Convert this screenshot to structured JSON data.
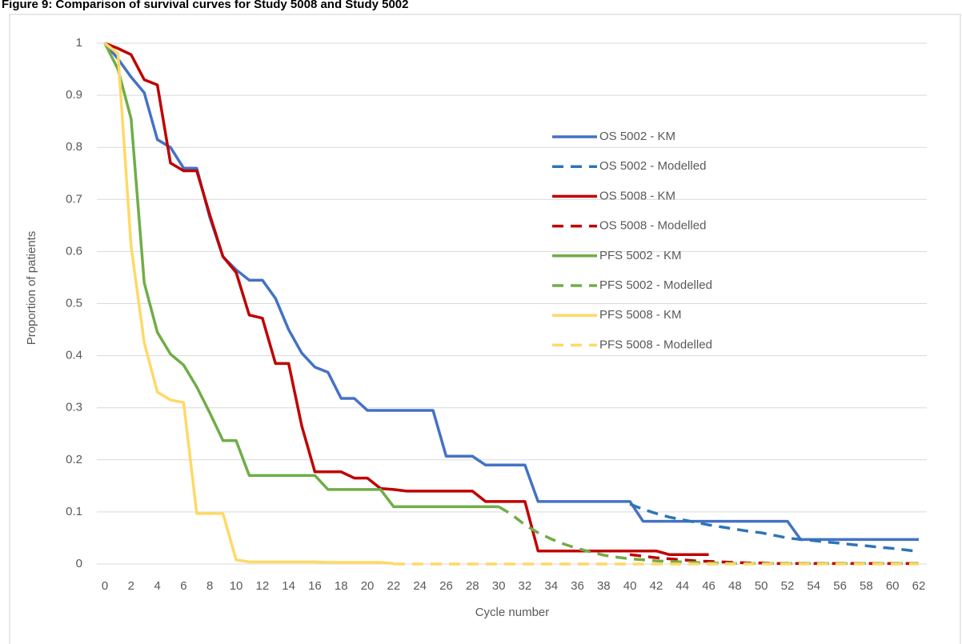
{
  "chart_data": {
    "type": "line",
    "title": "Figure 9: Comparison of survival curves for Study 5008 and Study 5002",
    "x_label": "Cycle number",
    "y_label": "Proportion of patients",
    "x": [
      0,
      1,
      2,
      3,
      4,
      5,
      6,
      7,
      8,
      9,
      10,
      11,
      12,
      13,
      14,
      15,
      16,
      17,
      18,
      19,
      20,
      21,
      22,
      23,
      24,
      25,
      26,
      27,
      28,
      29,
      30,
      31,
      32,
      33,
      34,
      35,
      36,
      37,
      38,
      39,
      40,
      41,
      42,
      43,
      44,
      45,
      46,
      47,
      48,
      49,
      50,
      51,
      52,
      53,
      54,
      55,
      56,
      57,
      58,
      59,
      60,
      61,
      62
    ],
    "xlim": [
      0,
      62
    ],
    "xticks": [
      0,
      2,
      4,
      6,
      8,
      10,
      12,
      14,
      16,
      18,
      20,
      22,
      24,
      26,
      28,
      30,
      32,
      34,
      36,
      38,
      40,
      42,
      44,
      46,
      48,
      50,
      52,
      54,
      56,
      58,
      60,
      62
    ],
    "ylim": [
      0,
      1
    ],
    "yticks": [
      0,
      0.1,
      0.2,
      0.3,
      0.4,
      0.5,
      0.6,
      0.7,
      0.8,
      0.9,
      1
    ],
    "grid": true,
    "legend": "right",
    "series": [
      {
        "name": "OS 5002 - KM",
        "color": "#4472C4",
        "style": "solid",
        "values": [
          1,
          0.97,
          0.935,
          0.905,
          0.815,
          0.8,
          0.76,
          0.76,
          0.665,
          0.59,
          0.565,
          0.545,
          0.545,
          0.51,
          0.45,
          0.405,
          0.378,
          0.368,
          0.318,
          0.318,
          0.295,
          0.295,
          0.295,
          0.295,
          0.295,
          0.295,
          0.207,
          0.207,
          0.207,
          0.19,
          0.19,
          0.19,
          0.19,
          0.12,
          0.12,
          0.12,
          0.12,
          0.12,
          0.12,
          0.12,
          0.12,
          0.082,
          0.082,
          0.082,
          0.082,
          0.082,
          0.082,
          0.082,
          0.082,
          0.082,
          0.082,
          0.082,
          0.082,
          0.047,
          0.047,
          0.047,
          0.047,
          0.047,
          0.047,
          0.047,
          0.047,
          0.047,
          0.047
        ]
      },
      {
        "name": "OS 5002 - Modelled",
        "color": "#2E75B6",
        "style": "dashed",
        "values": [
          null,
          null,
          null,
          null,
          null,
          null,
          null,
          null,
          null,
          null,
          null,
          null,
          null,
          null,
          null,
          null,
          null,
          null,
          null,
          null,
          null,
          null,
          null,
          null,
          null,
          null,
          null,
          null,
          null,
          null,
          null,
          null,
          null,
          null,
          null,
          null,
          null,
          null,
          null,
          null,
          0.115,
          0.105,
          0.097,
          0.09,
          0.085,
          0.08,
          0.075,
          0.071,
          0.067,
          0.063,
          0.06,
          0.055,
          0.05,
          0.047,
          0.045,
          0.042,
          0.04,
          0.037,
          0.035,
          0.032,
          0.03,
          0.027,
          0.024
        ]
      },
      {
        "name": "OS 5008 - KM",
        "color": "#C00000",
        "style": "solid",
        "values": [
          1,
          0.99,
          0.978,
          0.93,
          0.92,
          0.77,
          0.755,
          0.755,
          0.67,
          0.59,
          0.56,
          0.478,
          0.472,
          0.385,
          0.385,
          0.265,
          0.177,
          0.177,
          0.177,
          0.165,
          0.165,
          0.145,
          0.143,
          0.14,
          0.14,
          0.14,
          0.14,
          0.14,
          0.14,
          0.12,
          0.12,
          0.12,
          0.12,
          0.025,
          0.025,
          0.025,
          0.025,
          0.025,
          0.025,
          0.025,
          0.025,
          0.025,
          0.025,
          0.018,
          0.018,
          0.018,
          0.018,
          null,
          null,
          null,
          null,
          null,
          null,
          null,
          null,
          null,
          null,
          null,
          null,
          null,
          null,
          null,
          null
        ]
      },
      {
        "name": "OS 5008 - Modelled",
        "color": "#C00000",
        "style": "dashed",
        "values": [
          null,
          null,
          null,
          null,
          null,
          null,
          null,
          null,
          null,
          null,
          null,
          null,
          null,
          null,
          null,
          null,
          null,
          null,
          null,
          null,
          null,
          null,
          null,
          null,
          null,
          null,
          null,
          null,
          null,
          null,
          null,
          null,
          null,
          null,
          null,
          null,
          null,
          null,
          null,
          null,
          0.018,
          0.015,
          0.012,
          0.01,
          0.008,
          0.006,
          0.005,
          0.004,
          0.003,
          0.002,
          0.002,
          0.001,
          0.001,
          0.001,
          0.001,
          0.001,
          0.001,
          0.001,
          0.001,
          0.001,
          0.001,
          0.001,
          0.001
        ]
      },
      {
        "name": "PFS 5002 - KM",
        "color": "#70AD47",
        "style": "solid",
        "values": [
          1,
          0.95,
          0.855,
          0.54,
          0.445,
          0.403,
          0.382,
          0.34,
          0.29,
          0.237,
          0.237,
          0.17,
          0.17,
          0.17,
          0.17,
          0.17,
          0.17,
          0.143,
          0.143,
          0.143,
          0.143,
          0.143,
          0.11,
          0.11,
          0.11,
          0.11,
          0.11,
          0.11,
          0.11,
          0.11,
          0.11,
          null,
          null,
          null,
          null,
          null,
          null,
          null,
          null,
          null,
          null,
          null,
          null,
          null,
          null,
          null,
          null,
          null,
          null,
          null,
          null,
          null,
          null,
          null,
          null,
          null,
          null,
          null,
          null,
          null,
          null,
          null,
          null
        ]
      },
      {
        "name": "PFS 5002 - Modelled",
        "color": "#70AD47",
        "style": "dashed",
        "values": [
          null,
          null,
          null,
          null,
          null,
          null,
          null,
          null,
          null,
          null,
          null,
          null,
          null,
          null,
          null,
          null,
          null,
          null,
          null,
          null,
          null,
          null,
          null,
          null,
          null,
          null,
          null,
          null,
          null,
          null,
          0.11,
          0.095,
          0.075,
          0.06,
          0.048,
          0.038,
          0.03,
          0.023,
          0.017,
          0.013,
          0.01,
          0.008,
          0.006,
          0.005,
          0.004,
          0.003,
          0.002,
          0.002,
          0.001,
          0.001,
          0.001,
          0.001,
          0.001,
          0.001,
          0.001,
          0.001,
          0.001,
          0.001,
          0.001,
          0.001,
          0.001,
          0.001,
          0.001
        ]
      },
      {
        "name": "PFS 5008 - KM",
        "color": "#FFD966",
        "style": "solid",
        "values": [
          1,
          0.98,
          0.61,
          0.425,
          0.33,
          0.315,
          0.31,
          0.097,
          0.097,
          0.097,
          0.008,
          0.004,
          0.004,
          0.004,
          0.004,
          0.004,
          0.004,
          0.003,
          0.003,
          0.003,
          0.003,
          0.003,
          0.001,
          null,
          null,
          null,
          null,
          null,
          null,
          null,
          null,
          null,
          null,
          null,
          null,
          null,
          null,
          null,
          null,
          null,
          null,
          null,
          null,
          null,
          null,
          null,
          null,
          null,
          null,
          null,
          null,
          null,
          null,
          null,
          null,
          null,
          null,
          null,
          null,
          null,
          null,
          null,
          null
        ]
      },
      {
        "name": "PFS 5008 - Modelled",
        "color": "#FFD966",
        "style": "dashed",
        "values": [
          null,
          null,
          null,
          null,
          null,
          null,
          null,
          null,
          null,
          null,
          null,
          null,
          null,
          null,
          null,
          null,
          null,
          null,
          null,
          null,
          null,
          null,
          0,
          0,
          0,
          0,
          0,
          0,
          0,
          0,
          0,
          0,
          0,
          0,
          0,
          0,
          0,
          0,
          0,
          0,
          0,
          0,
          0,
          0,
          0,
          0,
          0,
          0,
          0,
          0,
          0,
          0,
          0,
          0,
          0,
          0,
          0,
          0,
          0,
          0,
          0,
          0,
          0
        ]
      }
    ]
  }
}
